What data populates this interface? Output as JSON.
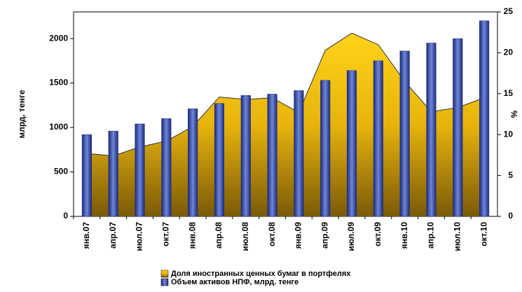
{
  "chart_data": {
    "type": "bar-area",
    "ylabel": "млрд. тенге",
    "y2label": "%",
    "categories": [
      "янв.07",
      "апр.07",
      "июл.07",
      "окт.07",
      "янв.08",
      "апр.08",
      "июл.08",
      "окт.08",
      "янв.09",
      "апр.09",
      "июл.09",
      "окт.09",
      "янв.10",
      "апр.10",
      "июл.10",
      "окт.10"
    ],
    "series": [
      {
        "name": "Доля иностранных ценных бумаг в портфелях",
        "color": "#e8b40c",
        "axis": "y2",
        "kind": "area",
        "values": [
          7.7,
          7.4,
          8.5,
          9.2,
          11.0,
          14.6,
          14.3,
          14.5,
          12.7,
          20.3,
          22.4,
          21.0,
          16.5,
          12.8,
          13.3,
          14.5
        ]
      },
      {
        "name": "Объем активов НПФ, млрд. тенге",
        "color": "#3a4fa8",
        "axis": "y",
        "kind": "bar",
        "values": [
          920,
          960,
          1040,
          1100,
          1210,
          1270,
          1360,
          1375,
          1415,
          1530,
          1640,
          1750,
          1860,
          1950,
          2000,
          2200
        ]
      }
    ],
    "ylim": [
      0,
      2300
    ],
    "yticks": [
      0,
      500,
      1000,
      1500,
      2000
    ],
    "y2lim": [
      0,
      25
    ],
    "y2ticks": [
      0,
      5,
      10,
      15,
      20,
      25
    ],
    "legend": "bottom"
  }
}
